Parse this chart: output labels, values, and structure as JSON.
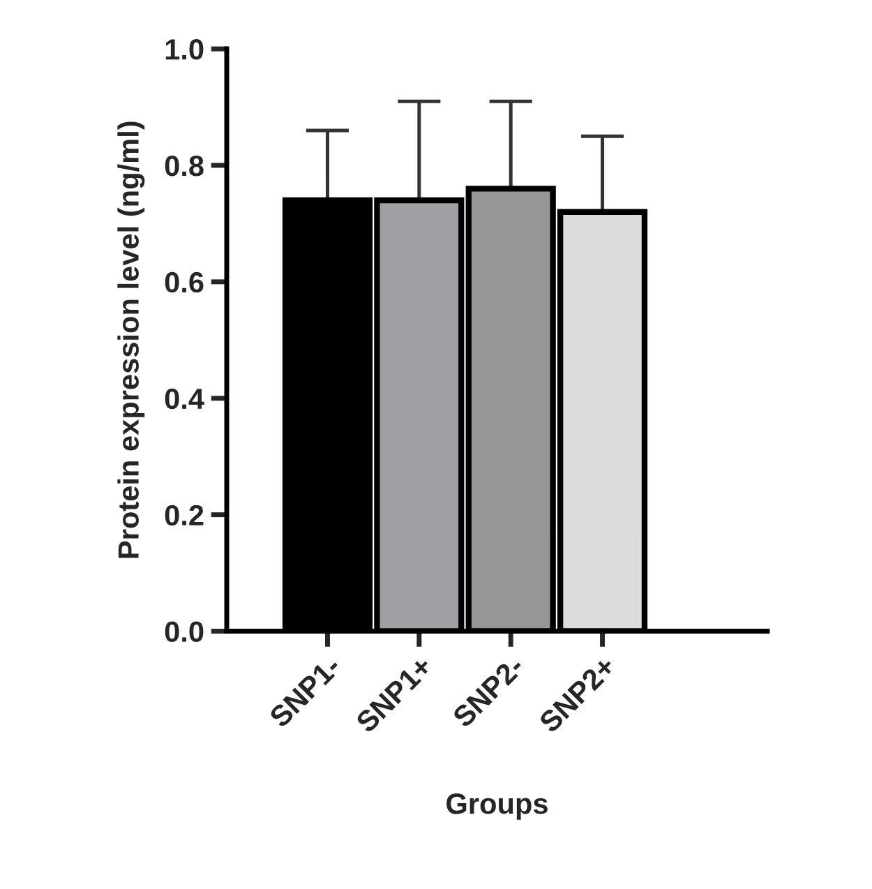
{
  "chart_data": {
    "type": "bar",
    "xlabel": "Groups",
    "ylabel": "Protein expression level (ng/ml)",
    "categories": [
      "SNP1-",
      "SNP1+",
      "SNP2-",
      "SNP2+"
    ],
    "values": [
      0.74,
      0.74,
      0.76,
      0.72
    ],
    "colors": [
      "#000000",
      "#a0a0a4",
      "#969696",
      "#dcdcdc"
    ],
    "errors": [
      [
        0.74,
        0.86
      ],
      [
        0.74,
        0.91
      ],
      [
        0.76,
        0.91
      ],
      [
        0.72,
        0.85
      ]
    ],
    "ylim": [
      0,
      1.0
    ],
    "yticks": [
      {
        "value": 0,
        "label": "0.0"
      },
      {
        "value": 0.2,
        "label": "0.2"
      },
      {
        "value": 0.4,
        "label": "0.4"
      },
      {
        "value": 0.6,
        "label": "0.6"
      },
      {
        "value": 0.8,
        "label": "0.8"
      },
      {
        "value": 1.0,
        "label": "1.0"
      }
    ],
    "grid": false,
    "legend": false
  }
}
